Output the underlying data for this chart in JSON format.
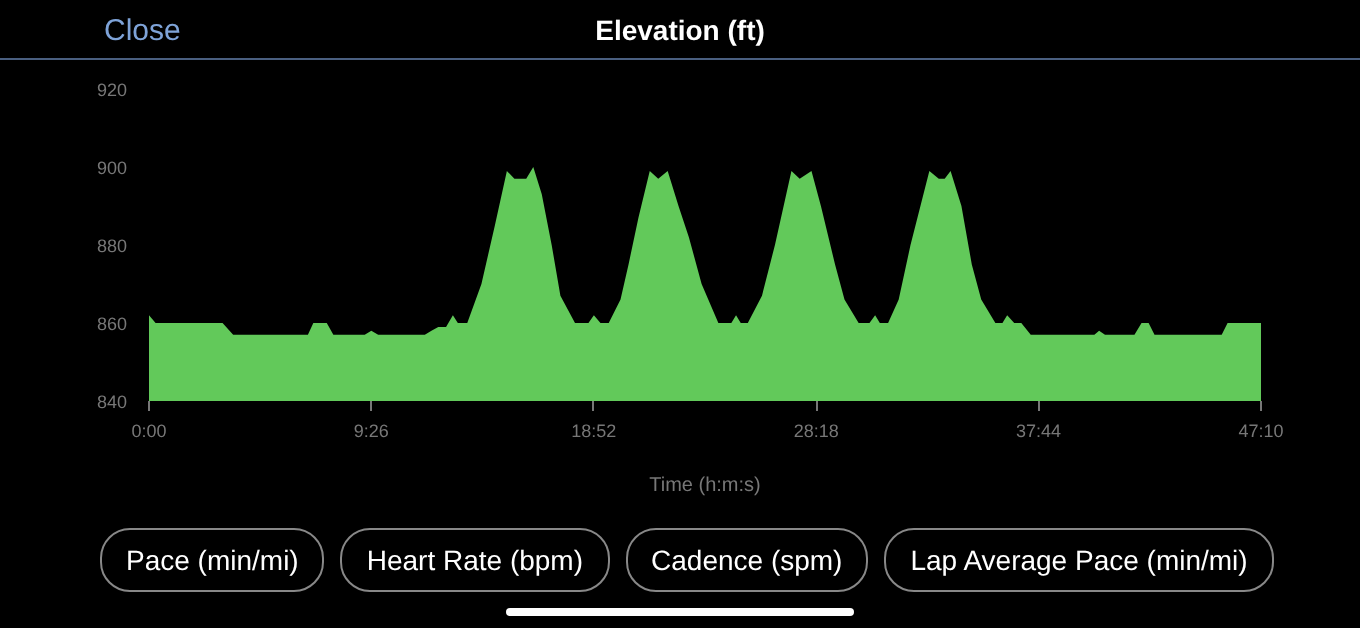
{
  "chart_data": {
    "type": "area",
    "title": "Elevation (ft)",
    "xlabel": "Time (h:m:s)",
    "annotations": [
      "Close",
      "Pace (min/mi)",
      "Heart Rate (bpm)",
      "Cadence (spm)",
      "Lap Average Pace (min/mi)"
    ],
    "x": [
      0,
      0.28,
      3.12,
      3.57,
      6.74,
      6.97,
      7.54,
      7.82,
      9.15,
      9.43,
      9.72,
      11.7,
      11.98,
      12.27,
      12.6,
      12.89,
      13.1,
      13.5,
      14.1,
      14.67,
      15.18,
      15.5,
      16.0,
      16.3,
      16.66,
      17.08,
      17.45,
      18.07,
      18.64,
      18.87,
      19.15,
      19.5,
      20.0,
      20.34,
      20.76,
      21.24,
      21.6,
      22.0,
      22.46,
      22.9,
      23.44,
      24.15,
      24.7,
      24.9,
      25.1,
      25.4,
      26.0,
      26.55,
      27.25,
      27.6,
      28.1,
      28.5,
      29.1,
      29.5,
      30.1,
      30.56,
      30.8,
      31.0,
      31.35,
      31.8,
      32.3,
      33.1,
      33.5,
      33.75,
      34.0,
      34.46,
      34.9,
      35.3,
      35.9,
      36.2,
      36.4,
      36.7,
      37.0,
      37.4,
      40.1,
      40.3,
      40.55,
      41.8,
      42.1,
      42.4,
      42.65,
      45.5,
      45.75,
      47.167
    ],
    "values": [
      862,
      860,
      860,
      857,
      857,
      860,
      860,
      857,
      857,
      858,
      857,
      857,
      858,
      859,
      859,
      862,
      860,
      860,
      870,
      885,
      899,
      897,
      897,
      900,
      893,
      880,
      867,
      860,
      860,
      862,
      860,
      860,
      866,
      875,
      887,
      899,
      897,
      899,
      890,
      882,
      870,
      860,
      860,
      862,
      860,
      860,
      867,
      880,
      899,
      897,
      899,
      890,
      875,
      866,
      860,
      860,
      862,
      860,
      860,
      866,
      880,
      899,
      897,
      897,
      899,
      890,
      875,
      866,
      860,
      860,
      862,
      860,
      860,
      857,
      857,
      858,
      857,
      857,
      860,
      860,
      857,
      857,
      860,
      860
    ],
    "color": "#62c95a",
    "xlim": [
      0,
      47.167
    ],
    "xticks": [
      {
        "value": 0,
        "label": "0:00"
      },
      {
        "value": 9.433,
        "label": "9:26"
      },
      {
        "value": 18.867,
        "label": "18:52"
      },
      {
        "value": 28.3,
        "label": "28:18"
      },
      {
        "value": 37.733,
        "label": "37:44"
      },
      {
        "value": 47.167,
        "label": "47:10"
      }
    ],
    "ylim": [
      840,
      920
    ],
    "yticks": [
      840,
      860,
      880,
      900,
      920
    ],
    "grid": false
  }
}
